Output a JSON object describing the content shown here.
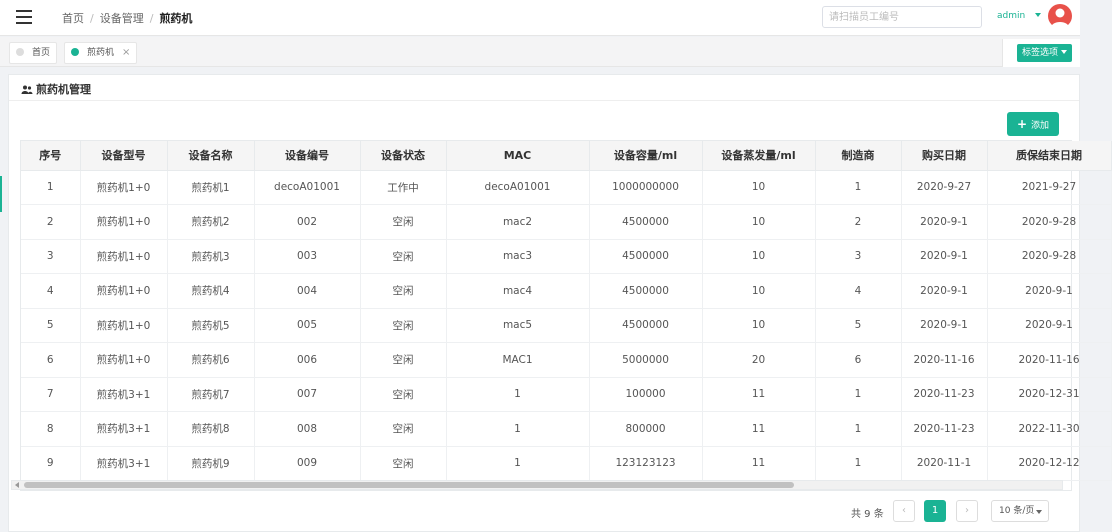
{
  "header": {
    "breadcrumb": [
      "首页",
      "设备管理",
      "煎药机"
    ],
    "breadcrumb_sep": "/",
    "search_placeholder": "请扫描员工编号",
    "search_value": "",
    "user": "admin",
    "accent_color": "#1ab394",
    "avatar_color": "#e8514a"
  },
  "tags": {
    "items": [
      {
        "label": "首页",
        "active": false
      },
      {
        "label": "煎药机",
        "active": true,
        "close": "×"
      }
    ],
    "options_label": "标签选项"
  },
  "panel": {
    "title": "煎药机管理",
    "add_label": "添加",
    "add_icon": "+"
  },
  "table": {
    "columns": [
      "序号",
      "设备型号",
      "设备名称",
      "设备编号",
      "设备状态",
      "MAC",
      "设备容量/ml",
      "设备蒸发量/ml",
      "制造商",
      "购买日期",
      "质保结束日期"
    ],
    "rows": [
      [
        "1",
        "煎药机1+0",
        "煎药机1",
        "decoA01001",
        "工作中",
        "decoA01001",
        "1000000000",
        "10",
        "1",
        "2020-9-27",
        "2021-9-27"
      ],
      [
        "2",
        "煎药机1+0",
        "煎药机2",
        "002",
        "空闲",
        "mac2",
        "4500000",
        "10",
        "2",
        "2020-9-1",
        "2020-9-28"
      ],
      [
        "3",
        "煎药机1+0",
        "煎药机3",
        "003",
        "空闲",
        "mac3",
        "4500000",
        "10",
        "3",
        "2020-9-1",
        "2020-9-28"
      ],
      [
        "4",
        "煎药机1+0",
        "煎药机4",
        "004",
        "空闲",
        "mac4",
        "4500000",
        "10",
        "4",
        "2020-9-1",
        "2020-9-1"
      ],
      [
        "5",
        "煎药机1+0",
        "煎药机5",
        "005",
        "空闲",
        "mac5",
        "4500000",
        "10",
        "5",
        "2020-9-1",
        "2020-9-1"
      ],
      [
        "6",
        "煎药机1+0",
        "煎药机6",
        "006",
        "空闲",
        "MAC1",
        "5000000",
        "20",
        "6",
        "2020-11-16",
        "2020-11-16"
      ],
      [
        "7",
        "煎药机3+1",
        "煎药机7",
        "007",
        "空闲",
        "1",
        "100000",
        "11",
        "1",
        "2020-11-23",
        "2020-12-31"
      ],
      [
        "8",
        "煎药机3+1",
        "煎药机8",
        "008",
        "空闲",
        "1",
        "800000",
        "11",
        "1",
        "2020-11-23",
        "2022-11-30"
      ],
      [
        "9",
        "煎药机3+1",
        "煎药机9",
        "009",
        "空闲",
        "1",
        "123123123",
        "11",
        "1",
        "2020-11-1",
        "2020-12-12"
      ]
    ]
  },
  "pagination": {
    "total_text": "共 9 条",
    "prev": "‹",
    "current_page": "1",
    "next": "›",
    "page_size": "10 条/页"
  }
}
